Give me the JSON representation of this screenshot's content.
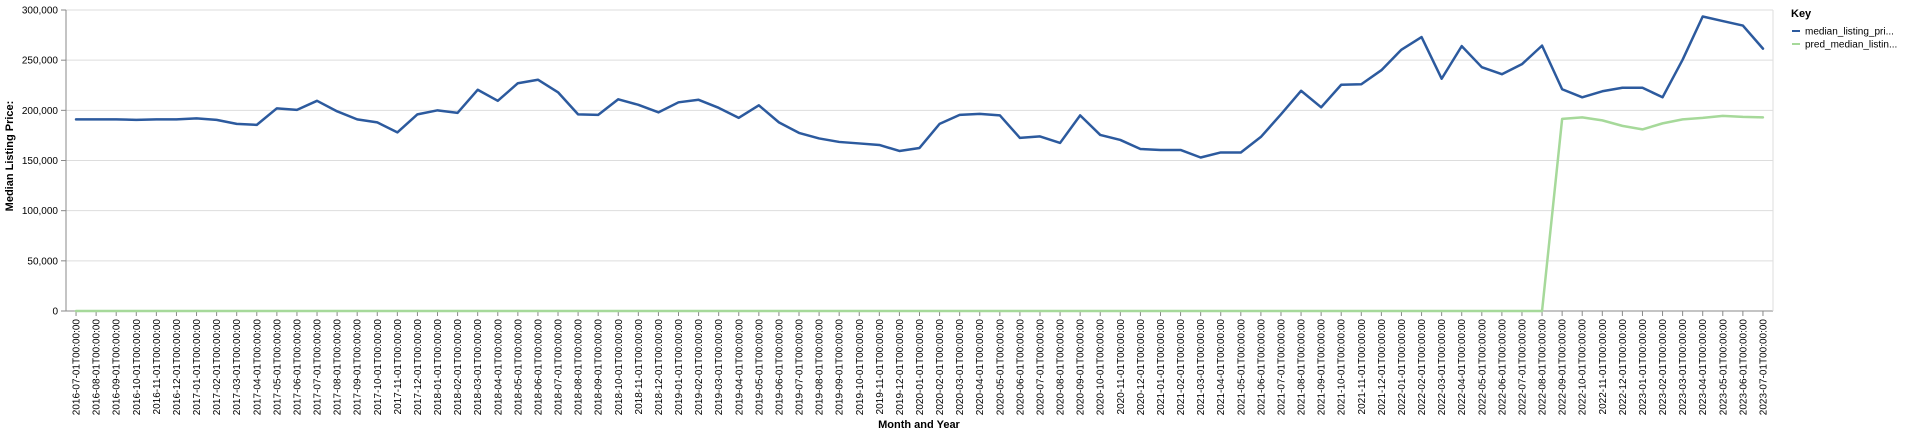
{
  "chart_data": {
    "type": "line",
    "xlabel": "Month and Year",
    "ylabel": "Median Listing Price:",
    "ylim": [
      0,
      300000
    ],
    "yticks": [
      "0",
      "50,000",
      "100,000",
      "150,000",
      "200,000",
      "250,000",
      "300,000"
    ],
    "grid": true,
    "legend": {
      "title": "Key",
      "placement": "right"
    },
    "x": [
      "2016-07-01T00:00:00",
      "2016-08-01T00:00:00",
      "2016-09-01T00:00:00",
      "2016-10-01T00:00:00",
      "2016-11-01T00:00:00",
      "2016-12-01T00:00:00",
      "2017-01-01T00:00:00",
      "2017-02-01T00:00:00",
      "2017-03-01T00:00:00",
      "2017-04-01T00:00:00",
      "2017-05-01T00:00:00",
      "2017-06-01T00:00:00",
      "2017-07-01T00:00:00",
      "2017-08-01T00:00:00",
      "2017-09-01T00:00:00",
      "2017-10-01T00:00:00",
      "2017-11-01T00:00:00",
      "2017-12-01T00:00:00",
      "2018-01-01T00:00:00",
      "2018-02-01T00:00:00",
      "2018-03-01T00:00:00",
      "2018-04-01T00:00:00",
      "2018-05-01T00:00:00",
      "2018-06-01T00:00:00",
      "2018-07-01T00:00:00",
      "2018-08-01T00:00:00",
      "2018-09-01T00:00:00",
      "2018-10-01T00:00:00",
      "2018-11-01T00:00:00",
      "2018-12-01T00:00:00",
      "2019-01-01T00:00:00",
      "2019-02-01T00:00:00",
      "2019-03-01T00:00:00",
      "2019-04-01T00:00:00",
      "2019-05-01T00:00:00",
      "2019-06-01T00:00:00",
      "2019-07-01T00:00:00",
      "2019-08-01T00:00:00",
      "2019-09-01T00:00:00",
      "2019-10-01T00:00:00",
      "2019-11-01T00:00:00",
      "2019-12-01T00:00:00",
      "2020-01-01T00:00:00",
      "2020-02-01T00:00:00",
      "2020-03-01T00:00:00",
      "2020-04-01T00:00:00",
      "2020-05-01T00:00:00",
      "2020-06-01T00:00:00",
      "2020-07-01T00:00:00",
      "2020-08-01T00:00:00",
      "2020-09-01T00:00:00",
      "2020-10-01T00:00:00",
      "2020-11-01T00:00:00",
      "2020-12-01T00:00:00",
      "2021-01-01T00:00:00",
      "2021-02-01T00:00:00",
      "2021-03-01T00:00:00",
      "2021-04-01T00:00:00",
      "2021-05-01T00:00:00",
      "2021-06-01T00:00:00",
      "2021-07-01T00:00:00",
      "2021-08-01T00:00:00",
      "2021-09-01T00:00:00",
      "2021-10-01T00:00:00",
      "2021-11-01T00:00:00",
      "2021-12-01T00:00:00",
      "2022-01-01T00:00:00",
      "2022-02-01T00:00:00",
      "2022-03-01T00:00:00",
      "2022-04-01T00:00:00",
      "2022-05-01T00:00:00",
      "2022-06-01T00:00:00",
      "2022-07-01T00:00:00",
      "2022-08-01T00:00:00",
      "2022-09-01T00:00:00",
      "2022-10-01T00:00:00",
      "2022-11-01T00:00:00",
      "2022-12-01T00:00:00",
      "2023-01-01T00:00:00",
      "2023-02-01T00:00:00",
      "2023-03-01T00:00:00",
      "2023-04-01T00:00:00",
      "2023-05-01T00:00:00",
      "2023-06-01T00:00:00",
      "2023-07-01T00:00:00"
    ],
    "series": [
      {
        "name": "median_listing_pri...",
        "color": "#2c5a9e",
        "values": [
          191000,
          191000,
          191000,
          190500,
          191000,
          191000,
          192000,
          190500,
          186500,
          185500,
          202000,
          200500,
          209500,
          199000,
          191000,
          188000,
          178000,
          196000,
          200000,
          197500,
          220500,
          209500,
          227000,
          230500,
          218000,
          196000,
          195500,
          211000,
          205500,
          198000,
          208000,
          210500,
          202500,
          192500,
          205000,
          188000,
          177500,
          172000,
          168500,
          167000,
          165500,
          159500,
          162500,
          186500,
          195500,
          196500,
          195000,
          172500,
          174000,
          167500,
          195000,
          175500,
          170500,
          161500,
          160500,
          160500,
          153000,
          158000,
          158000,
          173500,
          196000,
          219500,
          203000,
          225500,
          226000,
          240000,
          260500,
          273000,
          231500,
          264000,
          243000,
          236000,
          246000,
          264500,
          221000,
          213000,
          219000,
          222500,
          222500,
          213000,
          250500,
          293500,
          289000,
          284500,
          261500
        ]
      },
      {
        "name": "pred_median_listin...",
        "color": "#a6d99a",
        "values": [
          0,
          0,
          0,
          0,
          0,
          0,
          0,
          0,
          0,
          0,
          0,
          0,
          0,
          0,
          0,
          0,
          0,
          0,
          0,
          0,
          0,
          0,
          0,
          0,
          0,
          0,
          0,
          0,
          0,
          0,
          0,
          0,
          0,
          0,
          0,
          0,
          0,
          0,
          0,
          0,
          0,
          0,
          0,
          0,
          0,
          0,
          0,
          0,
          0,
          0,
          0,
          0,
          0,
          0,
          0,
          0,
          0,
          0,
          0,
          0,
          0,
          0,
          0,
          0,
          0,
          0,
          0,
          0,
          0,
          0,
          0,
          0,
          0,
          0,
          191500,
          193000,
          190000,
          184500,
          181000,
          187000,
          191000,
          192500,
          194500,
          193500,
          193000
        ]
      }
    ]
  }
}
